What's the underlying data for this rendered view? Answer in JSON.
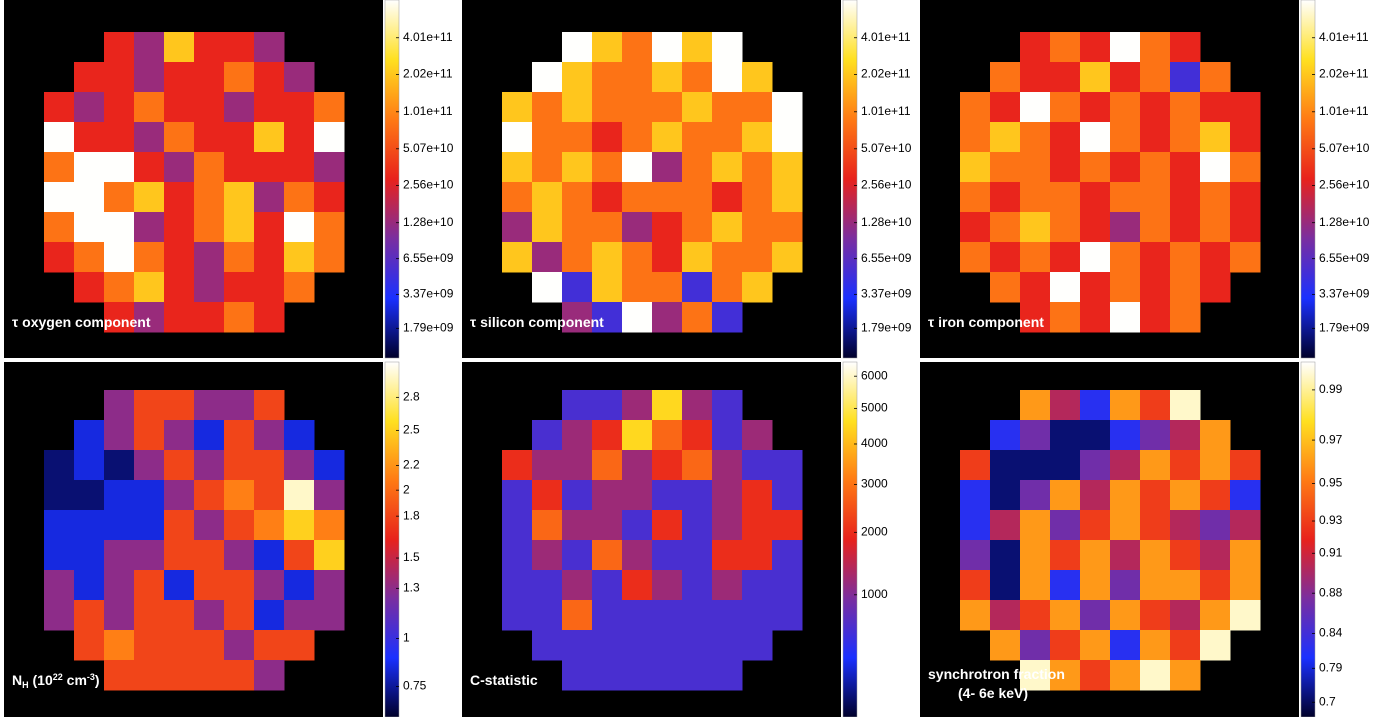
{
  "chart_data": [
    {
      "type": "heatmap",
      "title": "τ oxygen component",
      "scale": "log",
      "colormap": [
        "#00002a",
        "#1a30ff",
        "#7a2ea0",
        "#e8221c",
        "#ff7a14",
        "#ffe020",
        "#ffffff"
      ],
      "ylim": [
        1030000000.0,
        810000000000.0
      ],
      "yticks": [
        {
          "value": 1790000000.0,
          "label": "1.79e+09"
        },
        {
          "value": 3370000000.0,
          "label": "3.37e+09"
        },
        {
          "value": 6550000000.0,
          "label": "6.55e+09"
        },
        {
          "value": 12800000000.0,
          "label": "1.28e+10"
        },
        {
          "value": 25600000000.0,
          "label": "2.56e+10"
        },
        {
          "value": 50700000000.0,
          "label": "5.07e+10"
        },
        {
          "value": 101000000000.0,
          "label": "1.01e+11"
        },
        {
          "value": 202000000000.0,
          "label": "2.02e+11"
        },
        {
          "value": 401000000000.0,
          "label": "4.01e+11"
        }
      ],
      "values": [
        [
          null,
          null,
          30000000000.0,
          13000000000.0,
          200000000000.0,
          30000000000.0,
          30000000000.0,
          13000000000.0,
          null,
          null
        ],
        [
          null,
          30000000000.0,
          30000000000.0,
          13000000000.0,
          30000000000.0,
          30000000000.0,
          80000000000.0,
          30000000000.0,
          13000000000.0,
          null
        ],
        [
          30000000000.0,
          13000000000.0,
          30000000000.0,
          80000000000.0,
          30000000000.0,
          30000000000.0,
          13000000000.0,
          30000000000.0,
          30000000000.0,
          80000000000.0
        ],
        [
          800000000000.0,
          30000000000.0,
          30000000000.0,
          13000000000.0,
          80000000000.0,
          30000000000.0,
          30000000000.0,
          200000000000.0,
          30000000000.0,
          800000000000.0
        ],
        [
          80000000000.0,
          800000000000.0,
          800000000000.0,
          30000000000.0,
          13000000000.0,
          80000000000.0,
          30000000000.0,
          30000000000.0,
          30000000000.0,
          13000000000.0
        ],
        [
          800000000000.0,
          800000000000.0,
          80000000000.0,
          200000000000.0,
          30000000000.0,
          80000000000.0,
          200000000000.0,
          13000000000.0,
          80000000000.0,
          30000000000.0
        ],
        [
          80000000000.0,
          800000000000.0,
          800000000000.0,
          13000000000.0,
          30000000000.0,
          80000000000.0,
          200000000000.0,
          30000000000.0,
          800000000000.0,
          80000000000.0
        ],
        [
          30000000000.0,
          80000000000.0,
          800000000000.0,
          80000000000.0,
          30000000000.0,
          13000000000.0,
          80000000000.0,
          30000000000.0,
          200000000000.0,
          80000000000.0
        ],
        [
          null,
          30000000000.0,
          80000000000.0,
          200000000000.0,
          30000000000.0,
          13000000000.0,
          30000000000.0,
          30000000000.0,
          80000000000.0,
          null
        ],
        [
          null,
          null,
          30000000000.0,
          13000000000.0,
          30000000000.0,
          30000000000.0,
          80000000000.0,
          30000000000.0,
          null,
          null
        ]
      ]
    },
    {
      "type": "heatmap",
      "title": "τ silicon component",
      "scale": "log",
      "colormap": [
        "#00002a",
        "#1a30ff",
        "#7a2ea0",
        "#e8221c",
        "#ff7a14",
        "#ffe020",
        "#ffffff"
      ],
      "ylim": [
        1030000000.0,
        810000000000.0
      ],
      "yticks": [
        {
          "value": 1790000000.0,
          "label": "1.79e+09"
        },
        {
          "value": 3370000000.0,
          "label": "3.37e+09"
        },
        {
          "value": 6550000000.0,
          "label": "6.55e+09"
        },
        {
          "value": 12800000000.0,
          "label": "1.28e+10"
        },
        {
          "value": 25600000000.0,
          "label": "2.56e+10"
        },
        {
          "value": 50700000000.0,
          "label": "5.07e+10"
        },
        {
          "value": 101000000000.0,
          "label": "1.01e+11"
        },
        {
          "value": 202000000000.0,
          "label": "2.02e+11"
        },
        {
          "value": 401000000000.0,
          "label": "4.01e+11"
        }
      ],
      "values": [
        [
          null,
          null,
          800000000000.0,
          200000000000.0,
          80000000000.0,
          800000000000.0,
          200000000000.0,
          800000000000.0,
          null,
          null
        ],
        [
          null,
          800000000000.0,
          200000000000.0,
          80000000000.0,
          80000000000.0,
          200000000000.0,
          80000000000.0,
          800000000000.0,
          200000000000.0,
          null
        ],
        [
          200000000000.0,
          80000000000.0,
          200000000000.0,
          80000000000.0,
          80000000000.0,
          80000000000.0,
          200000000000.0,
          80000000000.0,
          80000000000.0,
          800000000000.0
        ],
        [
          800000000000.0,
          80000000000.0,
          80000000000.0,
          30000000000.0,
          80000000000.0,
          200000000000.0,
          80000000000.0,
          80000000000.0,
          200000000000.0,
          800000000000.0
        ],
        [
          200000000000.0,
          80000000000.0,
          200000000000.0,
          80000000000.0,
          800000000000.0,
          13000000000.0,
          80000000000.0,
          200000000000.0,
          80000000000.0,
          200000000000.0
        ],
        [
          80000000000.0,
          200000000000.0,
          80000000000.0,
          30000000000.0,
          80000000000.0,
          80000000000.0,
          80000000000.0,
          30000000000.0,
          80000000000.0,
          200000000000.0
        ],
        [
          13000000000.0,
          200000000000.0,
          80000000000.0,
          80000000000.0,
          13000000000.0,
          30000000000.0,
          80000000000.0,
          200000000000.0,
          80000000000.0,
          80000000000.0
        ],
        [
          200000000000.0,
          13000000000.0,
          80000000000.0,
          200000000000.0,
          80000000000.0,
          30000000000.0,
          200000000000.0,
          80000000000.0,
          80000000000.0,
          200000000000.0
        ],
        [
          null,
          800000000000.0,
          5000000000.0,
          200000000000.0,
          80000000000.0,
          80000000000.0,
          5000000000.0,
          80000000000.0,
          200000000000.0,
          null
        ],
        [
          null,
          null,
          13000000000.0,
          5000000000.0,
          800000000000.0,
          13000000000.0,
          80000000000.0,
          5000000000.0,
          null,
          null
        ]
      ]
    },
    {
      "type": "heatmap",
      "title": "τ iron component",
      "scale": "log",
      "colormap": [
        "#00002a",
        "#1a30ff",
        "#7a2ea0",
        "#e8221c",
        "#ff7a14",
        "#ffe020",
        "#ffffff"
      ],
      "ylim": [
        1030000000.0,
        810000000000.0
      ],
      "yticks": [
        {
          "value": 1790000000.0,
          "label": "1.79e+09"
        },
        {
          "value": 3370000000.0,
          "label": "3.37e+09"
        },
        {
          "value": 6550000000.0,
          "label": "6.55e+09"
        },
        {
          "value": 12800000000.0,
          "label": "1.28e+10"
        },
        {
          "value": 25600000000.0,
          "label": "2.56e+10"
        },
        {
          "value": 50700000000.0,
          "label": "5.07e+10"
        },
        {
          "value": 101000000000.0,
          "label": "1.01e+11"
        },
        {
          "value": 202000000000.0,
          "label": "2.02e+11"
        },
        {
          "value": 401000000000.0,
          "label": "4.01e+11"
        }
      ],
      "values": [
        [
          null,
          null,
          30000000000.0,
          80000000000.0,
          30000000000.0,
          800000000000.0,
          80000000000.0,
          30000000000.0,
          null,
          null
        ],
        [
          null,
          80000000000.0,
          30000000000.0,
          30000000000.0,
          200000000000.0,
          30000000000.0,
          80000000000.0,
          5000000000.0,
          80000000000.0,
          null
        ],
        [
          80000000000.0,
          30000000000.0,
          800000000000.0,
          80000000000.0,
          30000000000.0,
          80000000000.0,
          30000000000.0,
          80000000000.0,
          30000000000.0,
          30000000000.0
        ],
        [
          80000000000.0,
          200000000000.0,
          80000000000.0,
          30000000000.0,
          800000000000.0,
          80000000000.0,
          30000000000.0,
          80000000000.0,
          200000000000.0,
          30000000000.0
        ],
        [
          200000000000.0,
          80000000000.0,
          80000000000.0,
          30000000000.0,
          80000000000.0,
          30000000000.0,
          80000000000.0,
          30000000000.0,
          800000000000.0,
          80000000000.0
        ],
        [
          80000000000.0,
          30000000000.0,
          80000000000.0,
          80000000000.0,
          30000000000.0,
          80000000000.0,
          80000000000.0,
          30000000000.0,
          80000000000.0,
          30000000000.0
        ],
        [
          30000000000.0,
          80000000000.0,
          200000000000.0,
          80000000000.0,
          30000000000.0,
          13000000000.0,
          80000000000.0,
          30000000000.0,
          80000000000.0,
          30000000000.0
        ],
        [
          80000000000.0,
          30000000000.0,
          80000000000.0,
          30000000000.0,
          800000000000.0,
          80000000000.0,
          30000000000.0,
          80000000000.0,
          30000000000.0,
          80000000000.0
        ],
        [
          null,
          80000000000.0,
          30000000000.0,
          800000000000.0,
          30000000000.0,
          80000000000.0,
          30000000000.0,
          80000000000.0,
          30000000000.0,
          null
        ],
        [
          null,
          null,
          30000000000.0,
          80000000000.0,
          30000000000.0,
          800000000000.0,
          30000000000.0,
          80000000000.0,
          null,
          null
        ]
      ]
    },
    {
      "type": "heatmap",
      "title": [
        "N",
        "H",
        " (10",
        "22",
        " cm",
        "-3",
        ")"
      ],
      "scale": "sqrt",
      "colormap": [
        "#00002a",
        "#1a30ff",
        "#7a2ea0",
        "#e8221c",
        "#ff7a14",
        "#ffe020",
        "#ffffff"
      ],
      "ylim": [
        0.61,
        3.14
      ],
      "yticks": [
        0.75,
        1,
        1.3,
        1.5,
        1.8,
        2,
        2.2,
        2.5,
        2.8
      ],
      "values": [
        [
          null,
          null,
          1.3,
          1.8,
          1.8,
          1.3,
          1.3,
          1.8,
          null,
          null
        ],
        [
          null,
          0.85,
          1.3,
          1.8,
          1.3,
          0.85,
          1.8,
          1.3,
          0.85,
          null
        ],
        [
          0.7,
          0.85,
          0.7,
          1.3,
          1.8,
          1.3,
          1.8,
          1.8,
          1.3,
          0.85
        ],
        [
          0.7,
          0.7,
          0.85,
          0.85,
          1.3,
          1.8,
          2.1,
          1.8,
          3.0,
          1.3
        ],
        [
          0.85,
          0.85,
          0.85,
          0.85,
          1.8,
          1.3,
          1.8,
          2.1,
          2.5,
          2.1
        ],
        [
          0.85,
          0.85,
          1.3,
          1.3,
          1.8,
          1.8,
          1.3,
          0.85,
          1.8,
          2.5
        ],
        [
          1.3,
          0.85,
          1.3,
          1.8,
          0.85,
          1.8,
          1.8,
          1.3,
          0.85,
          1.3
        ],
        [
          1.3,
          1.8,
          1.3,
          1.8,
          1.8,
          1.3,
          1.8,
          0.85,
          1.3,
          1.3
        ],
        [
          null,
          1.8,
          2.1,
          1.8,
          1.8,
          1.8,
          1.3,
          1.8,
          1.8,
          null
        ],
        [
          null,
          null,
          1.8,
          1.8,
          1.8,
          1.8,
          1.8,
          1.3,
          null,
          null
        ]
      ]
    },
    {
      "type": "heatmap",
      "title": "C-statistic",
      "scale": "sqrt",
      "colormap": [
        "#00002a",
        "#1a30ff",
        "#7a2ea0",
        "#e8221c",
        "#ff7a14",
        "#ffe020",
        "#ffffff"
      ],
      "ylim": [
        36,
        6470
      ],
      "yticks": [
        1000,
        2000,
        3000,
        4000,
        5000,
        6000
      ],
      "values": [
        [
          null,
          null,
          600,
          600,
          1200,
          4500,
          1200,
          600,
          null,
          null
        ],
        [
          null,
          600,
          1200,
          2000,
          4500,
          2800,
          2000,
          600,
          1200,
          null
        ],
        [
          2000,
          1200,
          1200,
          2800,
          1200,
          2000,
          2800,
          1200,
          600,
          600
        ],
        [
          600,
          2000,
          600,
          1200,
          1200,
          600,
          600,
          1200,
          2000,
          600
        ],
        [
          600,
          2800,
          1200,
          1200,
          600,
          2000,
          600,
          1200,
          2000,
          2000
        ],
        [
          600,
          1200,
          600,
          2800,
          1200,
          600,
          600,
          2000,
          2000,
          600
        ],
        [
          600,
          600,
          1200,
          600,
          2000,
          1200,
          600,
          1200,
          600,
          600
        ],
        [
          600,
          600,
          2800,
          600,
          600,
          600,
          600,
          600,
          600,
          600
        ],
        [
          null,
          600,
          600,
          600,
          600,
          600,
          600,
          600,
          600,
          null
        ],
        [
          null,
          null,
          600,
          600,
          600,
          600,
          600,
          600,
          null,
          null
        ]
      ]
    },
    {
      "type": "heatmap",
      "title": [
        "synchrotron fraction",
        "(4- 6e keV)"
      ],
      "scale": "power",
      "exponent": 8,
      "colormap": [
        "#00002a",
        "#1a30ff",
        "#7a2ea0",
        "#e8221c",
        "#ff7a14",
        "#ffe020",
        "#ffffff"
      ],
      "ylim": [
        0.6,
        1.0
      ],
      "yticks": [
        0.7,
        0.79,
        0.84,
        0.88,
        0.91,
        0.93,
        0.95,
        0.97,
        0.99
      ],
      "values": [
        [
          null,
          null,
          0.96,
          0.9,
          0.82,
          0.96,
          0.93,
          0.995,
          null,
          null
        ],
        [
          null,
          0.82,
          0.87,
          0.72,
          0.72,
          0.82,
          0.87,
          0.9,
          0.96,
          null
        ],
        [
          0.93,
          0.72,
          0.72,
          0.72,
          0.87,
          0.9,
          0.96,
          0.93,
          0.96,
          0.93
        ],
        [
          0.82,
          0.72,
          0.87,
          0.96,
          0.9,
          0.96,
          0.93,
          0.96,
          0.93,
          0.82
        ],
        [
          0.82,
          0.9,
          0.96,
          0.87,
          0.93,
          0.96,
          0.93,
          0.9,
          0.87,
          0.9
        ],
        [
          0.87,
          0.72,
          0.96,
          0.93,
          0.96,
          0.9,
          0.96,
          0.93,
          0.9,
          0.96
        ],
        [
          0.93,
          0.72,
          0.96,
          0.82,
          0.96,
          0.87,
          0.96,
          0.96,
          0.93,
          0.96
        ],
        [
          0.96,
          0.9,
          0.93,
          0.96,
          0.87,
          0.96,
          0.93,
          0.9,
          0.96,
          0.995
        ],
        [
          null,
          0.96,
          0.87,
          0.93,
          0.96,
          0.82,
          0.96,
          0.93,
          0.995,
          null
        ],
        [
          null,
          null,
          0.995,
          0.96,
          0.93,
          0.96,
          0.995,
          0.96,
          null,
          null
        ]
      ]
    }
  ]
}
